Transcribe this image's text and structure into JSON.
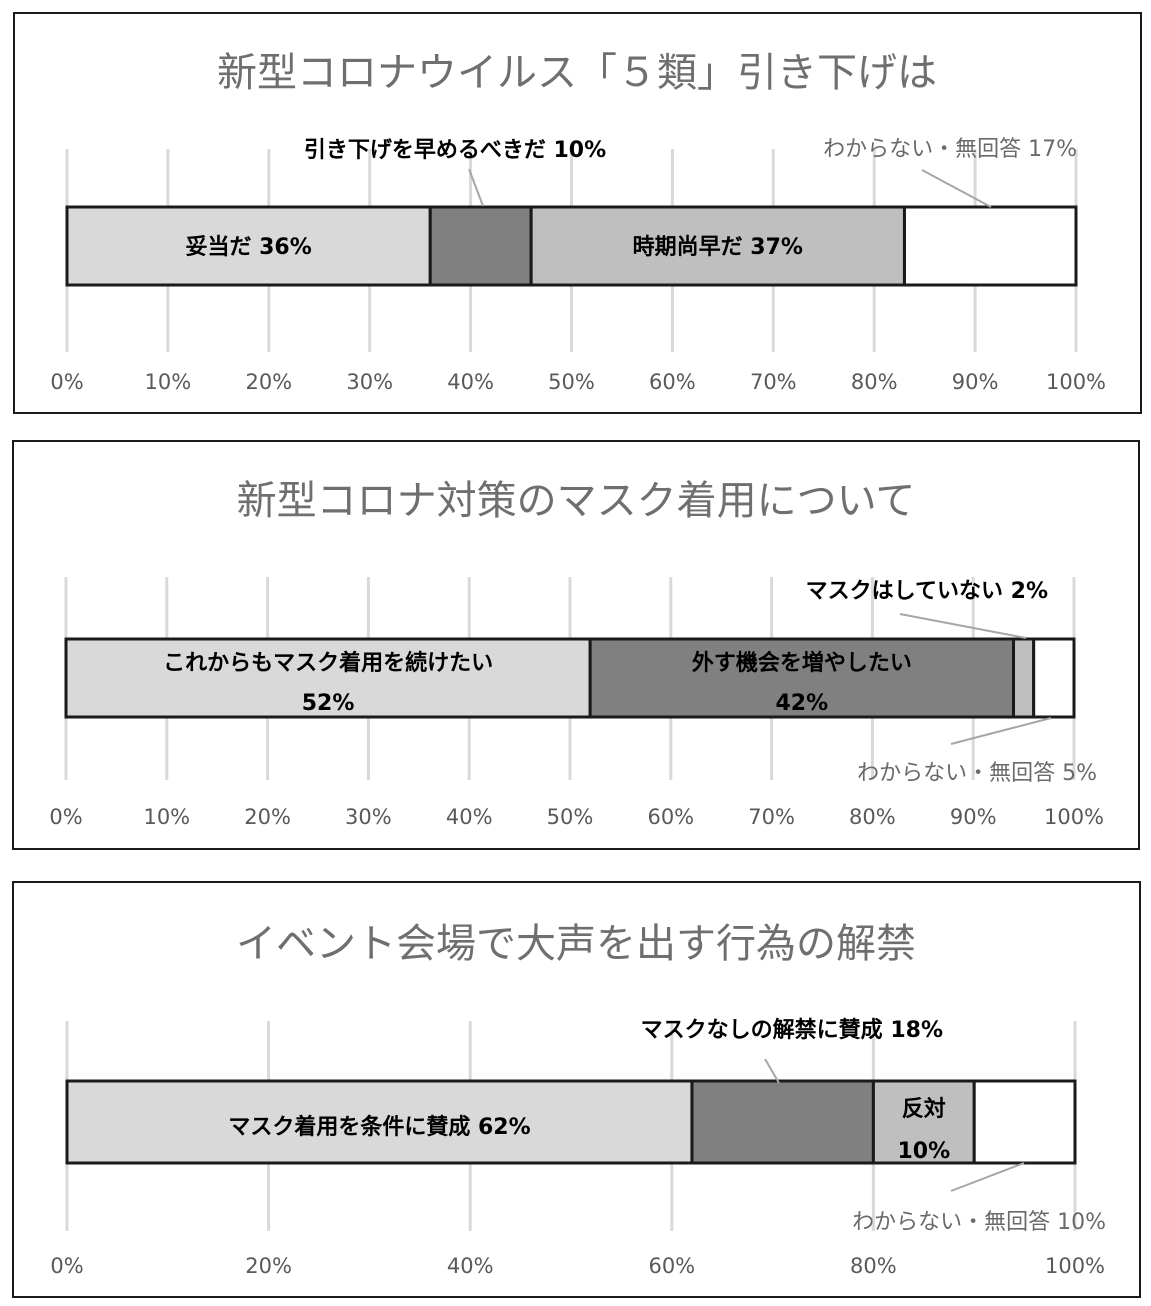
{
  "chart_data": [
    {
      "type": "bar",
      "stacked": true,
      "orientation": "horizontal",
      "title": "新型コロナウイルス「５類」引き下げは",
      "xlim": [
        0,
        100
      ],
      "x_ticks": [
        "0%",
        "10%",
        "20%",
        "30%",
        "40%",
        "50%",
        "60%",
        "70%",
        "80%",
        "90%",
        "100%"
      ],
      "grid": true,
      "series": [
        {
          "name": "妥当だ",
          "value": 36,
          "color": "#d9d9d9"
        },
        {
          "name": "引き下げを早めるべきだ",
          "value": 10,
          "color": "#808080"
        },
        {
          "name": "時期尚早だ",
          "value": 37,
          "color": "#bfbfbf"
        },
        {
          "name": "わからない・無回答",
          "value": 17,
          "color": "#ffffff"
        }
      ],
      "labels": {
        "inside": [
          "妥当だ 36%",
          "",
          "時期尚早だ 37%",
          ""
        ],
        "callouts": [
          {
            "text": "引き下げを早めるべきだ 10%",
            "style": "bold"
          },
          {
            "text": "わからない・無回答 17%",
            "style": "light"
          }
        ]
      }
    },
    {
      "type": "bar",
      "stacked": true,
      "orientation": "horizontal",
      "title": "新型コロナ対策のマスク着用について",
      "xlim": [
        0,
        100
      ],
      "x_ticks": [
        "0%",
        "10%",
        "20%",
        "30%",
        "40%",
        "50%",
        "60%",
        "70%",
        "80%",
        "90%",
        "100%"
      ],
      "grid": true,
      "series": [
        {
          "name": "これからもマスク着用を続けたい",
          "value": 52,
          "color": "#d9d9d9"
        },
        {
          "name": "外す機会を増やしたい",
          "value": 42,
          "color": "#808080"
        },
        {
          "name": "マスクはしていない",
          "value": 2,
          "color": "#bfbfbf"
        },
        {
          "name": "わからない・無回答",
          "value": 5,
          "color": "#ffffff"
        }
      ],
      "labels": {
        "inside": [
          [
            "これからもマスク着用を続けたい",
            "52%"
          ],
          [
            "外す機会を増やしたい",
            "42%"
          ],
          [],
          []
        ],
        "callouts": [
          {
            "text": "マスクはしていない 2%",
            "style": "bold"
          },
          {
            "text": "わからない・無回答 5%",
            "style": "light"
          }
        ]
      }
    },
    {
      "type": "bar",
      "stacked": true,
      "orientation": "horizontal",
      "title": "イベント会場で大声を出す行為の解禁",
      "xlim": [
        0,
        100
      ],
      "x_ticks": [
        "0%",
        "20%",
        "40%",
        "60%",
        "80%",
        "100%"
      ],
      "grid": true,
      "series": [
        {
          "name": "マスク着用を条件に賛成",
          "value": 62,
          "color": "#d9d9d9"
        },
        {
          "name": "マスクなしの解禁に賛成",
          "value": 18,
          "color": "#808080"
        },
        {
          "name": "反対",
          "value": 10,
          "color": "#bfbfbf"
        },
        {
          "name": "わからない・無回答",
          "value": 10,
          "color": "#ffffff"
        }
      ],
      "labels": {
        "inside": [
          [
            "マスク着用を条件に賛成 62%"
          ],
          [],
          [
            "反対",
            "10%"
          ],
          []
        ],
        "callouts": [
          {
            "text": "マスクなしの解禁に賛成 18%",
            "style": "bold"
          },
          {
            "text": "わからない・無回答 10%",
            "style": "light"
          }
        ]
      }
    }
  ]
}
